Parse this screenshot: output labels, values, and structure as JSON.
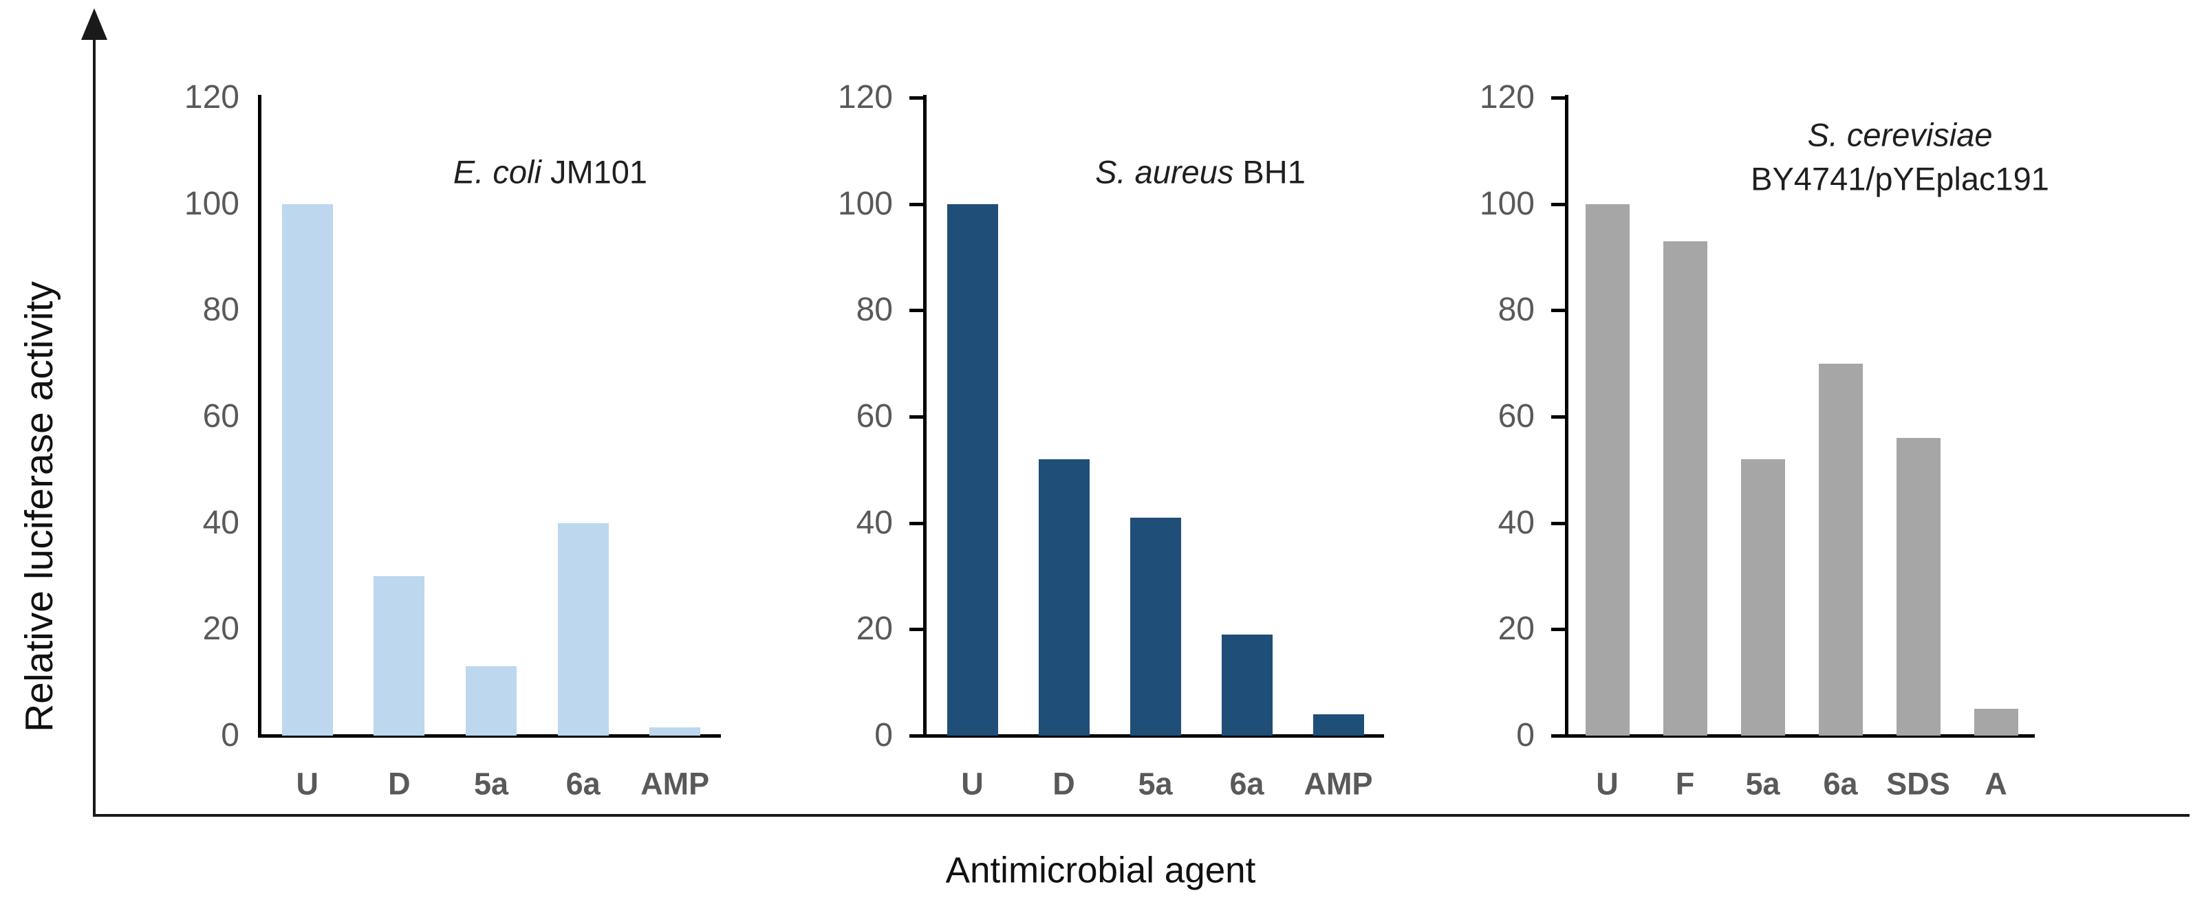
{
  "figure": {
    "y_axis_label": "Relative luciferase activity",
    "x_axis_label": "Antimicrobial agent"
  },
  "colors": {
    "chart1_bar": "#BDD7EE",
    "chart2_bar": "#1F4E79",
    "chart3_bar": "#A6A6A6",
    "tick_text": "#595959",
    "category_text": "#595959",
    "axis": "#000000",
    "title_text": "#1f1f1f"
  },
  "chart_data": [
    {
      "type": "bar",
      "title_italic": "E. coli",
      "title_regular": " JM101",
      "title_line2": "",
      "categories": [
        "U",
        "D",
        "5a",
        "6a",
        "AMP"
      ],
      "values": [
        100,
        30,
        13,
        40,
        1.5
      ],
      "bar_color": "#BDD7EE",
      "ylabel": "Relative luciferase activity",
      "xlabel": "Antimicrobial agent",
      "ylim": [
        0,
        120
      ],
      "yticks": [
        0,
        20,
        40,
        60,
        80,
        100,
        120
      ],
      "grid": false,
      "legend": "none"
    },
    {
      "type": "bar",
      "title_italic": "S. aureus",
      "title_regular": " BH1",
      "title_line2": "",
      "categories": [
        "U",
        "D",
        "5a",
        "6a",
        "AMP"
      ],
      "values": [
        100,
        52,
        41,
        19,
        4
      ],
      "bar_color": "#1F4E79",
      "ylabel": "Relative luciferase activity",
      "xlabel": "Antimicrobial agent",
      "ylim": [
        0,
        120
      ],
      "yticks": [
        0,
        20,
        40,
        60,
        80,
        100,
        120
      ],
      "grid": false,
      "legend": "none"
    },
    {
      "type": "bar",
      "title_italic": "S. cerevisiae",
      "title_regular": "",
      "title_line2": "BY4741/pYEplac191",
      "categories": [
        "U",
        "F",
        "5a",
        "6a",
        "SDS",
        "A"
      ],
      "values": [
        100,
        93,
        52,
        70,
        56,
        5
      ],
      "bar_color": "#A6A6A6",
      "ylabel": "Relative luciferase activity",
      "xlabel": "Antimicrobial agent",
      "ylim": [
        0,
        120
      ],
      "yticks": [
        0,
        20,
        40,
        60,
        80,
        100,
        120
      ],
      "grid": false,
      "legend": "none"
    }
  ]
}
